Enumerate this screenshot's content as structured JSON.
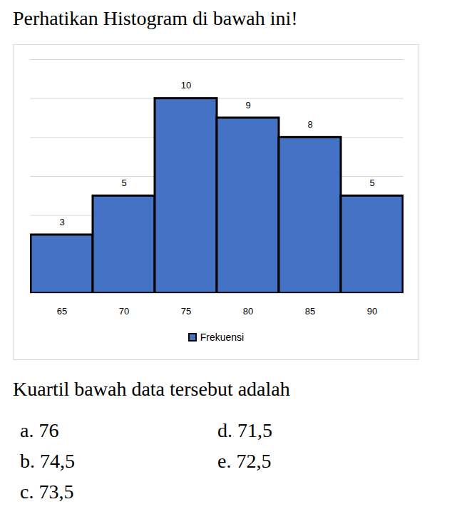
{
  "header": {
    "title": "Perhatikan Histogram di bawah ini!"
  },
  "chart_data": {
    "type": "bar",
    "categories": [
      "65",
      "70",
      "75",
      "80",
      "85",
      "90"
    ],
    "series": [
      {
        "name": "Frekuensi",
        "color": "#4472c4",
        "values": [
          3,
          5,
          10,
          9,
          8,
          5
        ]
      }
    ],
    "ylim": [
      0,
      12
    ],
    "yticks": [
      0,
      2,
      4,
      6,
      8,
      10,
      12
    ],
    "grid": true,
    "data_labels": true,
    "tick_labels": "x",
    "legend": "bottom"
  },
  "question": {
    "text": "Kuartil bawah data tersebut adalah",
    "options": [
      {
        "label": "a.",
        "text": "76"
      },
      {
        "label": "b.",
        "text": "74,5"
      },
      {
        "label": "c.",
        "text": "73,5"
      },
      {
        "label": "d.",
        "text": "71,5"
      },
      {
        "label": "e.",
        "text": "72,5"
      }
    ]
  }
}
